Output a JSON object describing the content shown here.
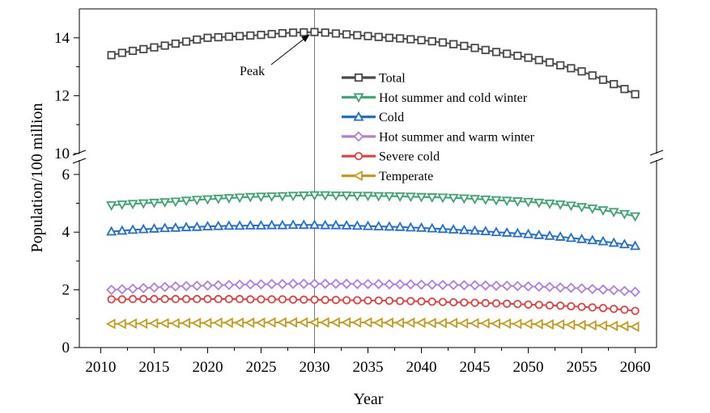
{
  "chart_data": {
    "type": "line",
    "xlabel": "Year",
    "ylabel": "Population/100 million",
    "xlim": [
      2008,
      2062
    ],
    "xticks": [
      2010,
      2015,
      2020,
      2025,
      2030,
      2035,
      2040,
      2045,
      2050,
      2055,
      2060
    ],
    "ylim_lower": [
      0,
      6.5
    ],
    "ylim_upper": [
      10,
      15
    ],
    "yticks_lower": [
      0,
      2,
      4,
      6
    ],
    "yticks_upper": [
      10,
      12,
      14
    ],
    "axis_break": true,
    "reference_line_x": 2030,
    "annotation": {
      "text": "Peak",
      "x": 2030,
      "y": 14.2
    },
    "legend_position": "center",
    "x": [
      2011,
      2012,
      2013,
      2014,
      2015,
      2016,
      2017,
      2018,
      2019,
      2020,
      2021,
      2022,
      2023,
      2024,
      2025,
      2026,
      2027,
      2028,
      2029,
      2030,
      2031,
      2032,
      2033,
      2034,
      2035,
      2036,
      2037,
      2038,
      2039,
      2040,
      2041,
      2042,
      2043,
      2044,
      2045,
      2046,
      2047,
      2048,
      2049,
      2050,
      2051,
      2052,
      2053,
      2054,
      2055,
      2056,
      2057,
      2058,
      2059,
      2060
    ],
    "series": [
      {
        "name": "Total",
        "color": "#4a4a4a",
        "marker": "square",
        "values": [
          13.4,
          13.48,
          13.55,
          13.61,
          13.67,
          13.73,
          13.8,
          13.87,
          13.94,
          14.0,
          14.02,
          14.04,
          14.06,
          14.08,
          14.1,
          14.13,
          14.16,
          14.18,
          14.19,
          14.2,
          14.18,
          14.15,
          14.12,
          14.09,
          14.06,
          14.03,
          14.0,
          13.98,
          13.95,
          13.92,
          13.88,
          13.84,
          13.78,
          13.72,
          13.65,
          13.58,
          13.51,
          13.45,
          13.38,
          13.31,
          13.23,
          13.15,
          13.05,
          12.95,
          12.84,
          12.7,
          12.55,
          12.4,
          12.23,
          12.05
        ]
      },
      {
        "name": "Hot summer and cold winter",
        "color": "#3aa571",
        "marker": "triangle-down",
        "values": [
          4.93,
          4.96,
          4.98,
          5.0,
          5.02,
          5.04,
          5.06,
          5.09,
          5.12,
          5.14,
          5.16,
          5.18,
          5.2,
          5.22,
          5.23,
          5.24,
          5.25,
          5.26,
          5.27,
          5.28,
          5.28,
          5.27,
          5.27,
          5.26,
          5.26,
          5.25,
          5.25,
          5.24,
          5.23,
          5.22,
          5.21,
          5.2,
          5.19,
          5.17,
          5.15,
          5.13,
          5.11,
          5.09,
          5.07,
          5.05,
          5.02,
          4.99,
          4.96,
          4.92,
          4.87,
          4.82,
          4.76,
          4.7,
          4.63,
          4.55
        ]
      },
      {
        "name": "Cold",
        "color": "#1f6fd1",
        "marker": "triangle-up",
        "values": [
          4.02,
          4.05,
          4.08,
          4.1,
          4.12,
          4.14,
          4.15,
          4.17,
          4.18,
          4.2,
          4.21,
          4.22,
          4.22,
          4.23,
          4.23,
          4.24,
          4.24,
          4.25,
          4.25,
          4.25,
          4.24,
          4.24,
          4.23,
          4.22,
          4.21,
          4.2,
          4.19,
          4.18,
          4.16,
          4.15,
          4.13,
          4.11,
          4.09,
          4.07,
          4.05,
          4.03,
          4.0,
          3.98,
          3.96,
          3.93,
          3.9,
          3.87,
          3.84,
          3.8,
          3.76,
          3.72,
          3.68,
          3.63,
          3.58,
          3.52
        ]
      },
      {
        "name": "Hot summer and warm winter",
        "color": "#b07ee0",
        "marker": "diamond",
        "values": [
          2.0,
          2.02,
          2.04,
          2.06,
          2.08,
          2.1,
          2.12,
          2.13,
          2.14,
          2.15,
          2.16,
          2.17,
          2.18,
          2.19,
          2.19,
          2.2,
          2.2,
          2.21,
          2.21,
          2.21,
          2.21,
          2.21,
          2.21,
          2.2,
          2.2,
          2.2,
          2.19,
          2.19,
          2.19,
          2.18,
          2.18,
          2.17,
          2.17,
          2.16,
          2.16,
          2.15,
          2.14,
          2.14,
          2.13,
          2.12,
          2.11,
          2.1,
          2.08,
          2.07,
          2.05,
          2.03,
          2.01,
          1.99,
          1.96,
          1.93
        ]
      },
      {
        "name": "Severe cold",
        "color": "#e5403f",
        "marker": "circle",
        "values": [
          1.67,
          1.67,
          1.68,
          1.68,
          1.68,
          1.68,
          1.68,
          1.68,
          1.68,
          1.68,
          1.68,
          1.68,
          1.68,
          1.67,
          1.67,
          1.67,
          1.67,
          1.66,
          1.66,
          1.66,
          1.65,
          1.65,
          1.64,
          1.64,
          1.63,
          1.63,
          1.62,
          1.61,
          1.61,
          1.6,
          1.59,
          1.58,
          1.57,
          1.56,
          1.55,
          1.54,
          1.53,
          1.52,
          1.51,
          1.49,
          1.48,
          1.46,
          1.45,
          1.43,
          1.41,
          1.39,
          1.37,
          1.34,
          1.31,
          1.27
        ]
      },
      {
        "name": "Temperate",
        "color": "#c79a1b",
        "marker": "triangle-left",
        "values": [
          0.82,
          0.82,
          0.83,
          0.83,
          0.84,
          0.84,
          0.84,
          0.85,
          0.85,
          0.85,
          0.86,
          0.86,
          0.86,
          0.86,
          0.86,
          0.87,
          0.87,
          0.87,
          0.87,
          0.87,
          0.87,
          0.87,
          0.87,
          0.87,
          0.87,
          0.86,
          0.86,
          0.86,
          0.86,
          0.86,
          0.85,
          0.85,
          0.85,
          0.84,
          0.84,
          0.84,
          0.83,
          0.83,
          0.82,
          0.82,
          0.81,
          0.8,
          0.8,
          0.79,
          0.78,
          0.77,
          0.76,
          0.75,
          0.74,
          0.72
        ]
      }
    ]
  }
}
